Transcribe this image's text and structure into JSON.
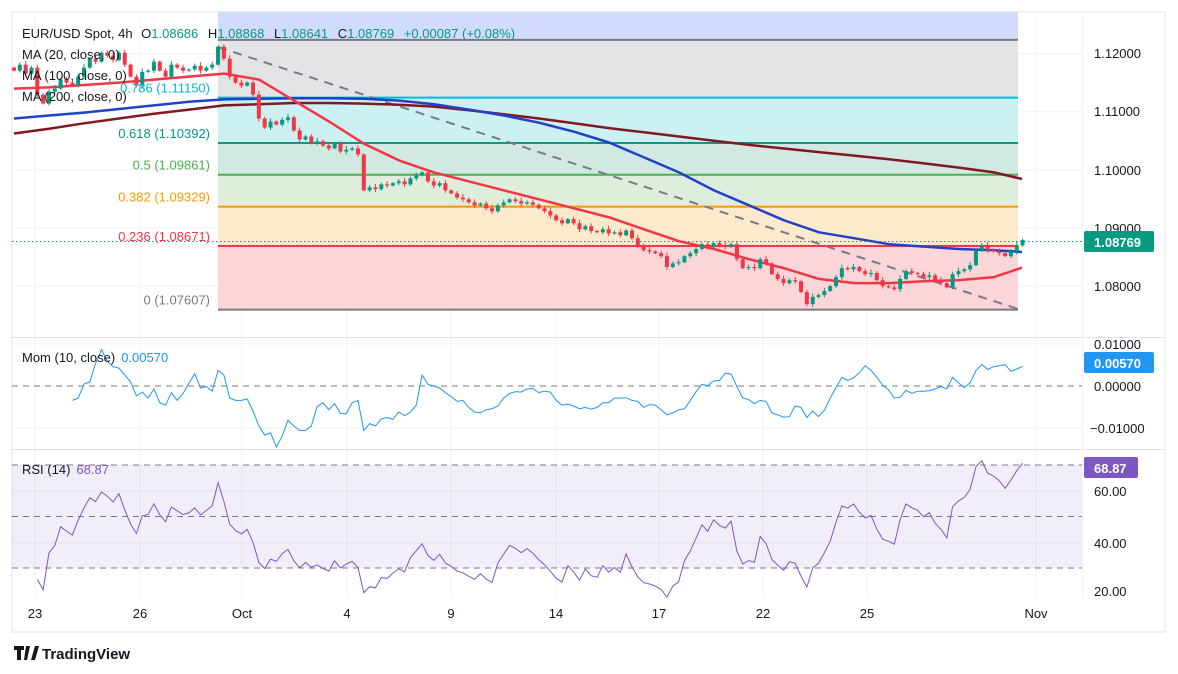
{
  "legend": {
    "symbol": "EUR/USD Spot, 4h",
    "open_label": "O",
    "open": "1.08686",
    "high_label": "H",
    "high": "1.08868",
    "low_label": "L",
    "low": "1.08641",
    "close_label": "C",
    "close": "1.08769",
    "change": "+0.00087 (+0.08%)",
    "ma20": "MA (20, close, 0)",
    "ma100": "MA (100, close, 0)",
    "ma200": "MA (200, close, 0)"
  },
  "momentum": {
    "label": "Mom (10, close)",
    "value": "0.00570",
    "ticks": [
      "0.01000",
      "0.00000",
      "−0.01000"
    ]
  },
  "rsi": {
    "label": "RSI (14)",
    "value": "68.87",
    "ticks": [
      "60.00",
      "40.00",
      "20.00"
    ]
  },
  "price_axis": {
    "ticks": [
      "1.12000",
      "1.11000",
      "1.10000",
      "1.09000",
      "1.08000"
    ],
    "last_price": "1.08769"
  },
  "date_axis": [
    "23",
    "26",
    "Oct",
    "4",
    "9",
    "14",
    "17",
    "22",
    "25",
    "Nov"
  ],
  "fibonacci": [
    {
      "ratio": "1",
      "price": 1.12115,
      "label": "",
      "color": "#787b86"
    },
    {
      "ratio": "0.786",
      "price": 1.1115,
      "label": "0.786 (1.11150)",
      "color": "#00bcd4"
    },
    {
      "ratio": "0.618",
      "price": 1.10392,
      "label": "0.618 (1.10392)",
      "color": "#089981"
    },
    {
      "ratio": "0.5",
      "price": 1.09861,
      "label": "0.5 (1.09861)",
      "color": "#4caf50"
    },
    {
      "ratio": "0.382",
      "price": 1.09329,
      "label": "0.382 (1.09329)",
      "color": "#ff9800"
    },
    {
      "ratio": "0.236",
      "price": 1.08671,
      "label": "0.236 (1.08671)",
      "color": "#f23645"
    },
    {
      "ratio": "0",
      "price": 1.07607,
      "label": "0 (1.07607)",
      "color": "#787b86"
    }
  ],
  "colors": {
    "up": "#089981",
    "down": "#f23645",
    "ma20": "#f23645",
    "ma100": "#2141c8",
    "ma200": "#801922",
    "momentum": "#2196f3",
    "rsi": "#7e57c2"
  },
  "brand": "TradingView",
  "chart_data": {
    "type": "candlestick",
    "timeframe": "4h",
    "ylim": [
      1.0715,
      1.1258
    ],
    "closes": [
      1.116,
      1.117,
      1.1155,
      1.1165,
      1.112,
      1.1105,
      1.1125,
      1.113,
      1.1145,
      1.114,
      1.1135,
      1.115,
      1.1165,
      1.118,
      1.1175,
      1.119,
      1.1185,
      1.1178,
      1.119,
      1.117,
      1.115,
      1.1135,
      1.1158,
      1.116,
      1.1175,
      1.116,
      1.115,
      1.117,
      1.1165,
      1.116,
      1.1162,
      1.1168,
      1.116,
      1.1165,
      1.117,
      1.12,
      1.118,
      1.115,
      1.114,
      1.1135,
      1.114,
      1.112,
      1.108,
      1.1065,
      1.1075,
      1.107,
      1.1078,
      1.1082,
      1.106,
      1.1045,
      1.105,
      1.104,
      1.1042,
      1.1035,
      1.103,
      1.1038,
      1.1025,
      1.1028,
      1.103,
      1.102,
      1.096,
      1.0965,
      1.0962,
      1.097,
      1.0968,
      1.0972,
      1.0975,
      1.097,
      1.098,
      1.0985,
      1.099,
      1.0975,
      1.0968,
      1.0972,
      1.096,
      1.0955,
      1.0948,
      1.0945,
      1.094,
      1.0935,
      1.0938,
      1.093,
      1.0925,
      1.0935,
      1.094,
      1.0945,
      1.0942,
      1.0938,
      1.094,
      1.0936,
      1.093,
      1.0925,
      1.0918,
      1.091,
      1.0905,
      1.0912,
      1.0905,
      1.0895,
      1.09,
      1.0892,
      1.089,
      1.0895,
      1.0888,
      1.089,
      1.0885,
      1.0893,
      1.088,
      1.0868,
      1.086,
      1.0858,
      1.0855,
      1.085,
      1.0832,
      1.0838,
      1.084,
      1.085,
      1.0855,
      1.0862,
      1.087,
      1.0865,
      1.0872,
      1.0868,
      1.0866,
      1.087,
      1.0845,
      1.083,
      1.0832,
      1.083,
      1.0845,
      1.0838,
      1.082,
      1.0812,
      1.0805,
      1.081,
      1.0808,
      1.079,
      1.077,
      1.0782,
      1.0785,
      1.0792,
      1.08,
      1.0815,
      1.083,
      1.0828,
      1.0832,
      1.0825,
      1.082,
      1.0822,
      1.081,
      1.08,
      1.0798,
      1.0795,
      1.0812,
      1.0825,
      1.0822,
      1.082,
      1.0815,
      1.0818,
      1.081,
      1.0805,
      1.0798,
      1.082,
      1.0825,
      1.0828,
      1.0835,
      1.086,
      1.0868,
      1.086,
      1.0858,
      1.0855,
      1.085,
      1.0858,
      1.0868,
      1.08769
    ],
    "ma20_daily": [
      1.113,
      1.1132,
      1.1136,
      1.114,
      1.1145,
      1.115,
      1.1155,
      1.1145,
      1.111,
      1.1075,
      1.1038,
      1.101,
      1.099,
      1.0975,
      1.096,
      1.0945,
      1.093,
      1.0915,
      1.0895,
      1.0875,
      1.0862,
      1.0845,
      1.083,
      1.0812,
      1.0805,
      1.0805,
      1.0808,
      1.081,
      1.0815,
      1.0831
    ],
    "ma100_daily": [
      1.108,
      1.1085,
      1.109,
      1.1096,
      1.1102,
      1.1108,
      1.1112,
      1.1113,
      1.1114,
      1.1114,
      1.1113,
      1.111,
      1.1104,
      1.1095,
      1.1085,
      1.1073,
      1.1058,
      1.104,
      1.1015,
      1.099,
      1.096,
      1.0935,
      1.091,
      1.089,
      1.088,
      1.087,
      1.0866,
      1.0862,
      1.086,
      1.0857
    ],
    "ma200_daily": [
      1.1055,
      1.1063,
      1.1072,
      1.108,
      1.1088,
      1.1095,
      1.1102,
      1.1104,
      1.1106,
      1.1106,
      1.1105,
      1.1103,
      1.11,
      1.1094,
      1.1087,
      1.108,
      1.1072,
      1.1064,
      1.1057,
      1.105,
      1.1043,
      1.1036,
      1.103,
      1.1024,
      1.1018,
      1.1012,
      1.1005,
      1.0998,
      1.099,
      1.0979
    ],
    "momentum_ylim": [
      -0.013,
      0.011
    ],
    "rsi_ylim": [
      18,
      73
    ],
    "rsi_bands": [
      30,
      50,
      70
    ]
  }
}
